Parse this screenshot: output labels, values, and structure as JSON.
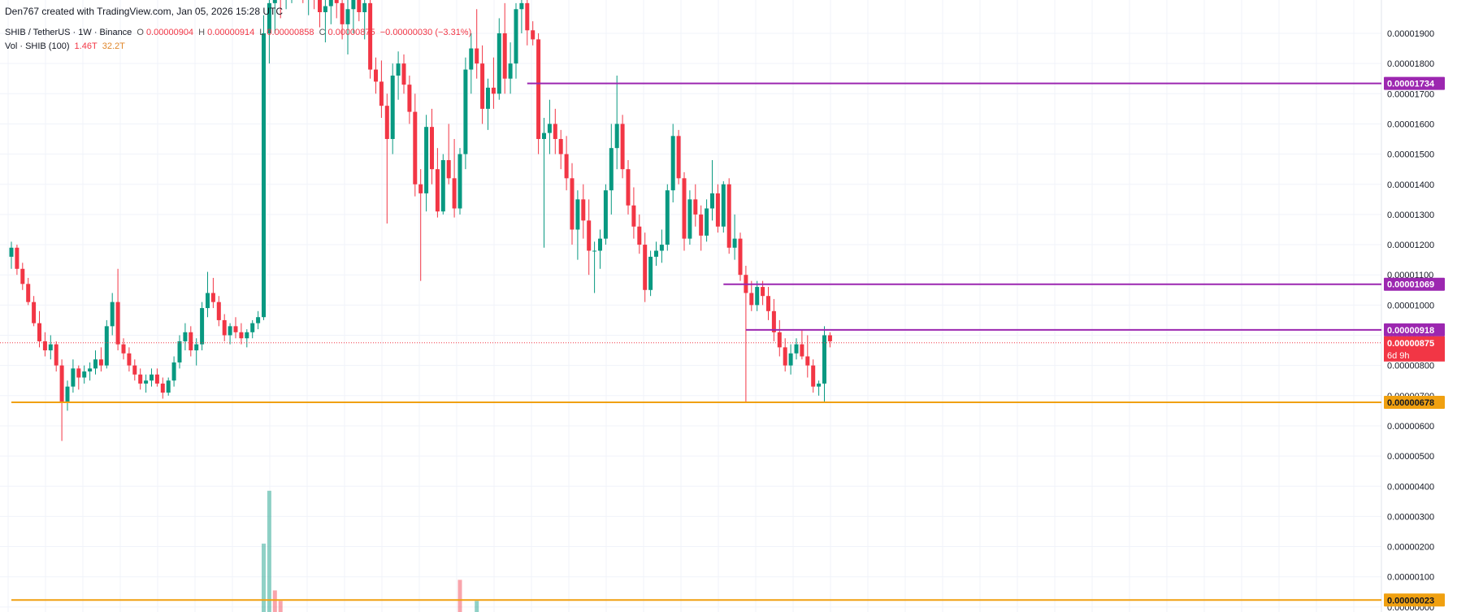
{
  "header": {
    "credit": "Den767 created with TradingView.com, Jan 05, 2026 15:28 UTC",
    "symbol": "SHIB / TetherUS · 1W · Binance",
    "o_label": "O",
    "o_value": "0.00000904",
    "h_label": "H",
    "h_value": "0.00000914",
    "l_label": "L",
    "l_value": "0.00000858",
    "c_label": "C",
    "c_value": "0.00000875",
    "change": "−0.00000030 (−3.31%)",
    "vol_label": "Vol · SHIB (100)",
    "vol_value_1": "1.46T",
    "vol_value_2": "32.2T"
  },
  "colors": {
    "up": "#089981",
    "down": "#f23645",
    "resistance_line": "#9c27b0",
    "support_line": "#f0a010",
    "price_label": "#f23645"
  },
  "price_tags": {
    "last_price": "0.00000875",
    "countdown": "6d 9h"
  },
  "chart_data": {
    "type": "candlestick",
    "title": "SHIB / TetherUS · 1W · Binance",
    "ylim": [
      0.0,
      1.96e-05
    ],
    "y_ticks": [
      "0.00001900",
      "0.00001800",
      "0.00001700",
      "0.00001600",
      "0.00001500",
      "0.00001400",
      "0.00001300",
      "0.00001200",
      "0.00001100",
      "0.00001000",
      "0.00000900",
      "0.00000800",
      "0.00000700",
      "0.00000600",
      "0.00000500",
      "0.00000400",
      "0.00000300",
      "0.00000200",
      "0.00000100",
      "0.00000000"
    ],
    "horizontal_lines": [
      {
        "value": 1.734e-05,
        "label": "0.00001734",
        "color": "#9c27b0",
        "x_start_index": 92
      },
      {
        "value": 1.069e-05,
        "label": "0.00001069",
        "color": "#9c27b0",
        "x_start_index": 127
      },
      {
        "value": 9.18e-06,
        "label": "0.00000918",
        "color": "#9c27b0",
        "x_start_index": 131
      },
      {
        "value": 6.78e-06,
        "label": "0.00000678",
        "color": "#f0a010",
        "x_start_index": 0
      },
      {
        "value": 2.3e-07,
        "label": "0.00000023",
        "color": "#f0a010",
        "x_start_index": 0
      }
    ],
    "candles": [
      [
        1.16e-05,
        1.21e-05,
        1.12e-05,
        1.19e-05
      ],
      [
        1.19e-05,
        1.2e-05,
        1.1e-05,
        1.12e-05
      ],
      [
        1.12e-05,
        1.14e-05,
        1.05e-05,
        1.07e-05
      ],
      [
        1.07e-05,
        1.09e-05,
        1e-05,
        1.01e-05
      ],
      [
        1.01e-05,
        1.03e-05,
        9.3e-06,
        9.4e-06
      ],
      [
        9.4e-06,
        9.8e-06,
        8.6e-06,
        8.8e-06
      ],
      [
        8.8e-06,
        9.1e-06,
        8.3e-06,
        8.5e-06
      ],
      [
        8.5e-06,
        9e-06,
        8.2e-06,
        8.7e-06
      ],
      [
        8.7e-06,
        8.8e-06,
        7.8e-06,
        8e-06
      ],
      [
        8e-06,
        8.2e-06,
        5.5e-06,
        6.8e-06
      ],
      [
        6.8e-06,
        7.5e-06,
        6.5e-06,
        7.3e-06
      ],
      [
        7.3e-06,
        8.2e-06,
        7.1e-06,
        7.9e-06
      ],
      [
        7.9e-06,
        8e-06,
        7.2e-06,
        7.6e-06
      ],
      [
        7.6e-06,
        8e-06,
        7.4e-06,
        7.8e-06
      ],
      [
        7.8e-06,
        8.1e-06,
        7.5e-06,
        7.9e-06
      ],
      [
        7.9e-06,
        8.5e-06,
        7.7e-06,
        8.2e-06
      ],
      [
        8.2e-06,
        8.6e-06,
        7.8e-06,
        8e-06
      ],
      [
        8e-06,
        9.5e-06,
        7.9e-06,
        9.3e-06
      ],
      [
        9.3e-06,
        1.04e-05,
        9e-06,
        1.01e-05
      ],
      [
        1.01e-05,
        1.12e-05,
        8.5e-06,
        8.7e-06
      ],
      [
        8.7e-06,
        8.9e-06,
        8.2e-06,
        8.4e-06
      ],
      [
        8.4e-06,
        8.6e-06,
        7.8e-06,
        8e-06
      ],
      [
        8e-06,
        8.2e-06,
        7.5e-06,
        7.7e-06
      ],
      [
        7.7e-06,
        7.9e-06,
        7.2e-06,
        7.4e-06
      ],
      [
        7.4e-06,
        7.7e-06,
        7.1e-06,
        7.5e-06
      ],
      [
        7.5e-06,
        7.9e-06,
        7.3e-06,
        7.7e-06
      ],
      [
        7.7e-06,
        7.9e-06,
        7.3e-06,
        7.4e-06
      ],
      [
        7.4e-06,
        7.6e-06,
        6.9e-06,
        7.1e-06
      ],
      [
        7.1e-06,
        7.6e-06,
        7e-06,
        7.5e-06
      ],
      [
        7.5e-06,
        8.3e-06,
        7.3e-06,
        8.1e-06
      ],
      [
        8.1e-06,
        9e-06,
        7.9e-06,
        8.8e-06
      ],
      [
        8.8e-06,
        9.4e-06,
        8.5e-06,
        9.1e-06
      ],
      [
        9.1e-06,
        9.3e-06,
        8.3e-06,
        8.5e-06
      ],
      [
        8.5e-06,
        8.9e-06,
        8e-06,
        8.7e-06
      ],
      [
        8.7e-06,
        1.01e-05,
        8.5e-06,
        9.9e-06
      ],
      [
        9.9e-06,
        1.11e-05,
        9.6e-06,
        1.04e-05
      ],
      [
        1.04e-05,
        1.09e-05,
        9.9e-06,
        1.01e-05
      ],
      [
        1.01e-05,
        1.03e-05,
        9.3e-06,
        9.5e-06
      ],
      [
        9.5e-06,
        9.7e-06,
        8.8e-06,
        9e-06
      ],
      [
        9e-06,
        9.4e-06,
        8.7e-06,
        9.3e-06
      ],
      [
        9.3e-06,
        9.6e-06,
        8.9e-06,
        9.1e-06
      ],
      [
        9.1e-06,
        9.4e-06,
        8.7e-06,
        8.9e-06
      ],
      [
        8.9e-06,
        9.2e-06,
        8.6e-06,
        9.1e-06
      ],
      [
        9.1e-06,
        9.5e-06,
        8.9e-06,
        9.4e-06
      ],
      [
        9.4e-06,
        9.8e-06,
        9.2e-06,
        9.6e-06
      ],
      [
        9.6e-06,
        1.96e-05,
        9.5e-06,
        1.9e-05
      ],
      [
        1.9e-05,
        2.05e-05,
        1.8e-05,
        2e-05
      ],
      [
        2e-05,
        2.3e-05,
        1.9e-05,
        2.15e-05
      ],
      [
        2.15e-05,
        2.2e-05,
        1.95e-05,
        2.05e-05
      ],
      [
        2.05e-05,
        2.12e-05,
        1.98e-05,
        2.08e-05
      ],
      [
        2.08e-05,
        2.15e-05,
        2e-05,
        2.1e-05
      ],
      [
        2.1e-05,
        2.18e-05,
        2.02e-05,
        2.12e-05
      ],
      [
        2.12e-05,
        2.2e-05,
        2e-05,
        2.06e-05
      ],
      [
        2.06e-05,
        2.14e-05,
        1.96e-05,
        2.1e-05
      ],
      [
        2.1e-05,
        2.16e-05,
        1.98e-05,
        2.04e-05
      ],
      [
        2.04e-05,
        2.1e-05,
        1.92e-05,
        1.97e-05
      ],
      [
        1.97e-05,
        2.06e-05,
        1.87e-05,
        1.99e-05
      ],
      [
        1.99e-05,
        2.1e-05,
        1.93e-05,
        2.06e-05
      ],
      [
        2.06e-05,
        2.12e-05,
        1.95e-05,
        2e-05
      ],
      [
        2e-05,
        2.06e-05,
        1.88e-05,
        1.93e-05
      ],
      [
        1.93e-05,
        2.02e-05,
        1.83e-05,
        1.98e-05
      ],
      [
        1.98e-05,
        2.06e-05,
        1.9e-05,
        2.02e-05
      ],
      [
        2.02e-05,
        2.1e-05,
        1.94e-05,
        1.97e-05
      ],
      [
        1.97e-05,
        2.05e-05,
        1.88e-05,
        2e-05
      ],
      [
        2e-05,
        2.05e-05,
        1.75e-05,
        1.78e-05
      ],
      [
        1.78e-05,
        1.82e-05,
        1.7e-05,
        1.74e-05
      ],
      [
        1.74e-05,
        1.81e-05,
        1.62e-05,
        1.66e-05
      ],
      [
        1.66e-05,
        1.7e-05,
        1.27e-05,
        1.55e-05
      ],
      [
        1.55e-05,
        1.8e-05,
        1.5e-05,
        1.76e-05
      ],
      [
        1.76e-05,
        1.84e-05,
        1.68e-05,
        1.8e-05
      ],
      [
        1.8e-05,
        1.83e-05,
        1.7e-05,
        1.73e-05
      ],
      [
        1.73e-05,
        1.76e-05,
        1.6e-05,
        1.64e-05
      ],
      [
        1.64e-05,
        1.7e-05,
        1.36e-05,
        1.4e-05
      ],
      [
        1.4e-05,
        1.45e-05,
        1.08e-05,
        1.37e-05
      ],
      [
        1.37e-05,
        1.63e-05,
        1.31e-05,
        1.59e-05
      ],
      [
        1.59e-05,
        1.65e-05,
        1.4e-05,
        1.45e-05
      ],
      [
        1.45e-05,
        1.52e-05,
        1.29e-05,
        1.31e-05
      ],
      [
        1.31e-05,
        1.5e-05,
        1.3e-05,
        1.48e-05
      ],
      [
        1.48e-05,
        1.6e-05,
        1.4e-05,
        1.42e-05
      ],
      [
        1.42e-05,
        1.55e-05,
        1.29e-05,
        1.32e-05
      ],
      [
        1.32e-05,
        1.52e-05,
        1.3e-05,
        1.5e-05
      ],
      [
        1.5e-05,
        1.82e-05,
        1.45e-05,
        1.78e-05
      ],
      [
        1.78e-05,
        1.9e-05,
        1.7e-05,
        1.85e-05
      ],
      [
        1.85e-05,
        1.98e-05,
        1.75e-05,
        1.8e-05
      ],
      [
        1.8e-05,
        1.86e-05,
        1.6e-05,
        1.65e-05
      ],
      [
        1.65e-05,
        1.75e-05,
        1.58e-05,
        1.72e-05
      ],
      [
        1.72e-05,
        1.82e-05,
        1.65e-05,
        1.7e-05
      ],
      [
        1.7e-05,
        1.95e-05,
        1.68e-05,
        1.9e-05
      ],
      [
        1.9e-05,
        2e-05,
        1.7e-05,
        1.75e-05
      ],
      [
        1.75e-05,
        1.87e-05,
        1.7e-05,
        1.8e-05
      ],
      [
        1.8e-05,
        2e-05,
        1.75e-05,
        1.98e-05
      ],
      [
        1.98e-05,
        2.05e-05,
        1.9e-05,
        2e-05
      ],
      [
        2e-05,
        2.05e-05,
        1.86e-05,
        1.91e-05
      ],
      [
        1.91e-05,
        1.94e-05,
        1.86e-05,
        1.88e-05
      ],
      [
        1.88e-05,
        1.9e-05,
        1.5e-05,
        1.55e-05
      ],
      [
        1.55e-05,
        1.62e-05,
        1.19e-05,
        1.57e-05
      ],
      [
        1.57e-05,
        1.68e-05,
        1.5e-05,
        1.6e-05
      ],
      [
        1.6e-05,
        1.65e-05,
        1.5e-05,
        1.55e-05
      ],
      [
        1.55e-05,
        1.58e-05,
        1.45e-05,
        1.5e-05
      ],
      [
        1.5e-05,
        1.56e-05,
        1.38e-05,
        1.42e-05
      ],
      [
        1.42e-05,
        1.47e-05,
        1.2e-05,
        1.25e-05
      ],
      [
        1.25e-05,
        1.38e-05,
        1.15e-05,
        1.35e-05
      ],
      [
        1.35e-05,
        1.4e-05,
        1.22e-05,
        1.28e-05
      ],
      [
        1.28e-05,
        1.35e-05,
        1.1e-05,
        1.18e-05
      ],
      [
        1.18e-05,
        1.21e-05,
        1.04e-05,
        1.18e-05
      ],
      [
        1.18e-05,
        1.25e-05,
        1.12e-05,
        1.22e-05
      ],
      [
        1.22e-05,
        1.4e-05,
        1.2e-05,
        1.38e-05
      ],
      [
        1.38e-05,
        1.6e-05,
        1.3e-05,
        1.52e-05
      ],
      [
        1.52e-05,
        1.76e-05,
        1.45e-05,
        1.6e-05
      ],
      [
        1.6e-05,
        1.63e-05,
        1.42e-05,
        1.45e-05
      ],
      [
        1.45e-05,
        1.48e-05,
        1.3e-05,
        1.33e-05
      ],
      [
        1.33e-05,
        1.39e-05,
        1.22e-05,
        1.26e-05
      ],
      [
        1.26e-05,
        1.3e-05,
        1.17e-05,
        1.2e-05
      ],
      [
        1.2e-05,
        1.24e-05,
        1.01e-05,
        1.05e-05
      ],
      [
        1.05e-05,
        1.18e-05,
        1.03e-05,
        1.16e-05
      ],
      [
        1.16e-05,
        1.21e-05,
        1.13e-05,
        1.18e-05
      ],
      [
        1.18e-05,
        1.25e-05,
        1.14e-05,
        1.2e-05
      ],
      [
        1.2e-05,
        1.4e-05,
        1.18e-05,
        1.38e-05
      ],
      [
        1.38e-05,
        1.6e-05,
        1.34e-05,
        1.56e-05
      ],
      [
        1.56e-05,
        1.58e-05,
        1.4e-05,
        1.42e-05
      ],
      [
        1.42e-05,
        1.44e-05,
        1.18e-05,
        1.22e-05
      ],
      [
        1.22e-05,
        1.38e-05,
        1.2e-05,
        1.35e-05
      ],
      [
        1.35e-05,
        1.4e-05,
        1.26e-05,
        1.3e-05
      ],
      [
        1.3e-05,
        1.33e-05,
        1.18e-05,
        1.23e-05
      ],
      [
        1.23e-05,
        1.35e-05,
        1.21e-05,
        1.32e-05
      ],
      [
        1.32e-05,
        1.48e-05,
        1.28e-05,
        1.37e-05
      ],
      [
        1.37e-05,
        1.4e-05,
        1.24e-05,
        1.26e-05
      ],
      [
        1.26e-05,
        1.41e-05,
        1.24e-05,
        1.4e-05
      ],
      [
        1.4e-05,
        1.42e-05,
        1.17e-05,
        1.19e-05
      ],
      [
        1.19e-05,
        1.3e-05,
        1.15e-05,
        1.22e-05
      ],
      [
        1.22e-05,
        1.24e-05,
        1.08e-05,
        1.1e-05
      ],
      [
        1.1e-05,
        1.13e-05,
        6.8e-06,
        1.04e-05
      ],
      [
        1.04e-05,
        1.08e-05,
        9.8e-06,
        1e-05
      ],
      [
        1e-05,
        1.08e-05,
        9.8e-06,
        1.06e-05
      ],
      [
        1.06e-05,
        1.08e-05,
        1e-05,
        1.03e-05
      ],
      [
        1.03e-05,
        1.06e-05,
        9.5e-06,
        9.8e-06
      ],
      [
        9.8e-06,
        1.02e-05,
        8.8e-06,
        9.1e-06
      ],
      [
        9.1e-06,
        9.5e-06,
        8.3e-06,
        8.6e-06
      ],
      [
        8.6e-06,
        8.9e-06,
        7.8e-06,
        8e-06
      ],
      [
        8e-06,
        8.7e-06,
        7.7e-06,
        8.4e-06
      ],
      [
        8.4e-06,
        8.9e-06,
        8.2e-06,
        8.7e-06
      ],
      [
        8.7e-06,
        9.2e-06,
        8.2e-06,
        8.3e-06
      ],
      [
        8.3e-06,
        9e-06,
        7.6e-06,
        8e-06
      ],
      [
        8e-06,
        8.2e-06,
        7.1e-06,
        7.3e-06
      ],
      [
        7.3e-06,
        7.5e-06,
        7e-06,
        7.4e-06
      ],
      [
        7.4e-06,
        9.3e-06,
        6.8e-06,
        9e-06
      ],
      [
        9e-06,
        9.1e-06,
        8.6e-06,
        8.8e-06
      ]
    ],
    "volume_bars": [
      {
        "index": 45,
        "value": 2.1e-06,
        "direction": "up"
      },
      {
        "index": 46,
        "value": 3.85e-06,
        "direction": "up"
      },
      {
        "index": 47,
        "value": 5.5e-07,
        "direction": "down"
      },
      {
        "index": 48,
        "value": 2e-07,
        "direction": "down"
      },
      {
        "index": 80,
        "value": 9e-07,
        "direction": "down"
      },
      {
        "index": 83,
        "value": 2e-07,
        "direction": "up"
      }
    ]
  }
}
